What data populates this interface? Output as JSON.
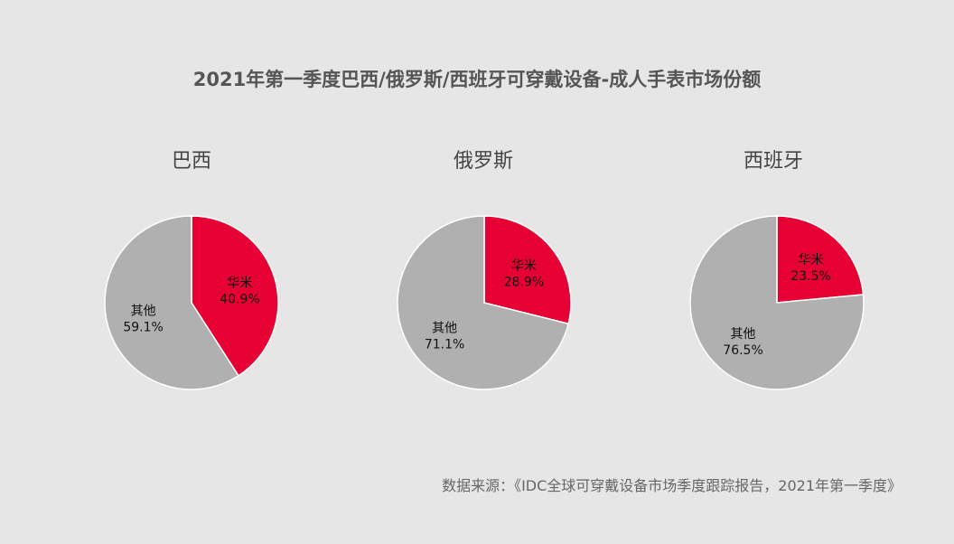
{
  "title": "2021年第一季度巴西/俄罗斯/西班牙可穿戴设备-成人手表市场份额",
  "source": "数据来源：《IDC全球可穿戴设备市场季度跟踪报告，2021年第一季度》",
  "colors": {
    "huami": "#e60033",
    "others": "#b0b0b0",
    "background": "#e6e6e6"
  },
  "chart_data": [
    {
      "type": "pie",
      "title": "巴西",
      "slices": [
        {
          "label": "华米",
          "value": 40.9,
          "value_text": "40.9%"
        },
        {
          "label": "其他",
          "value": 59.1,
          "value_text": "59.1%"
        }
      ]
    },
    {
      "type": "pie",
      "title": "俄罗斯",
      "slices": [
        {
          "label": "华米",
          "value": 28.9,
          "value_text": "28.9%"
        },
        {
          "label": "其他",
          "value": 71.1,
          "value_text": "71.1%"
        }
      ]
    },
    {
      "type": "pie",
      "title": "西班牙",
      "slices": [
        {
          "label": "华米",
          "value": 23.5,
          "value_text": "23.5%"
        },
        {
          "label": "其他",
          "value": 76.5,
          "value_text": "76.5%"
        }
      ]
    }
  ]
}
